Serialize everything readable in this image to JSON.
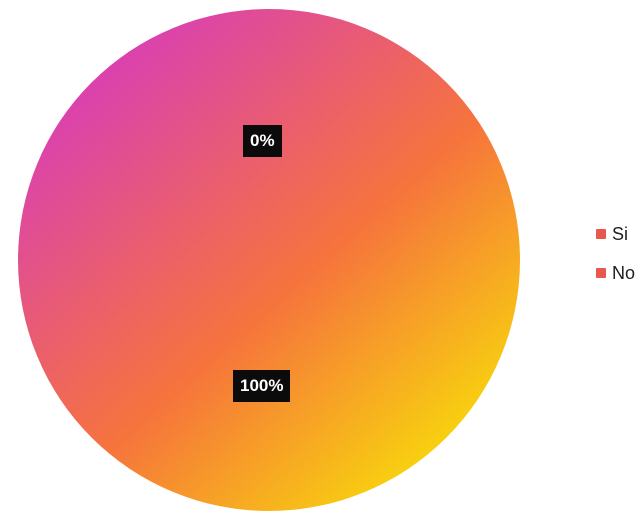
{
  "chart_data": {
    "type": "pie",
    "categories": [
      "Si",
      "No"
    ],
    "values": [
      0,
      100
    ],
    "labels": [
      "0%",
      "100%"
    ],
    "legend_position": "right",
    "colors": {
      "gradient_start": "#d63ac0",
      "gradient_mid": "#f6743c",
      "gradient_end": "#f8e804",
      "legend_swatch": "#e8584f"
    }
  }
}
